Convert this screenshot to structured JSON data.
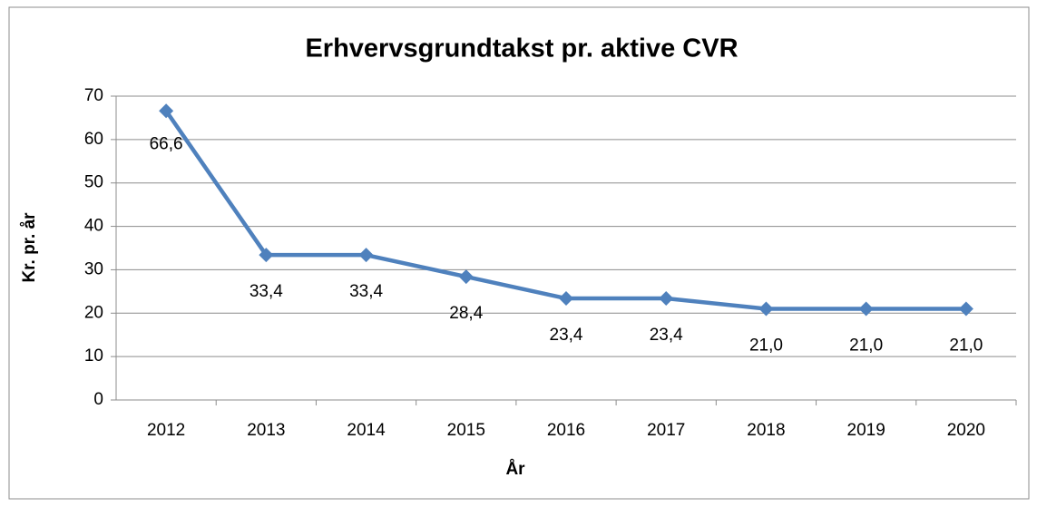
{
  "chart_data": {
    "type": "line",
    "title": "Erhvervsgrundtakst pr. aktive CVR",
    "x_label": "År",
    "y_label": "Kr. pr. år",
    "categories": [
      "2012",
      "2013",
      "2014",
      "2015",
      "2016",
      "2017",
      "2018",
      "2019",
      "2020"
    ],
    "series": [
      {
        "name": "Erhvervsgrundtakst",
        "color": "#4f81bd",
        "values": [
          66.6,
          33.4,
          33.4,
          28.4,
          23.4,
          23.4,
          21.0,
          21.0,
          21.0
        ],
        "value_labels": [
          "66,6",
          "33,4",
          "33,4",
          "28,4",
          "23,4",
          "23,4",
          "21,0",
          "21,0",
          "21,0"
        ]
      }
    ],
    "ylim": [
      0,
      70
    ],
    "yticks": [
      0,
      10,
      20,
      30,
      40,
      50,
      60,
      70
    ],
    "grid": true,
    "legend": false
  }
}
